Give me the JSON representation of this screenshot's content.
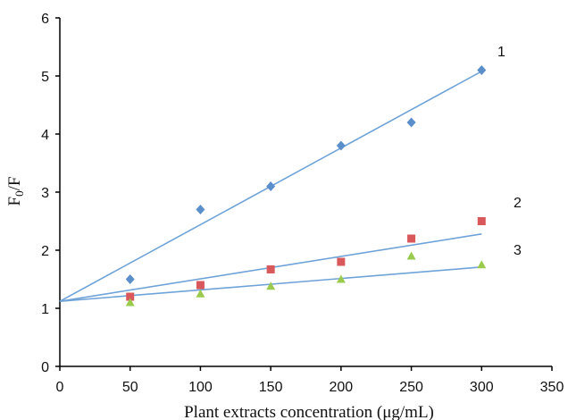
{
  "chart_data": {
    "type": "scatter",
    "xlabel": "Plant extracts concentration (μg/mL)",
    "ylabel": {
      "main": "F",
      "sub": "0",
      "tail": "/F"
    },
    "xlim": [
      0,
      350
    ],
    "ylim": [
      0,
      6
    ],
    "xticks": [
      0,
      50,
      100,
      150,
      200,
      250,
      300,
      350
    ],
    "yticks": [
      0,
      1,
      2,
      3,
      4,
      5,
      6
    ],
    "grid": false,
    "legend": "none",
    "line_color": "#6fa3d8",
    "series": [
      {
        "name": "1",
        "marker": "diamond",
        "color": "#5b8fcb",
        "x": [
          50,
          100,
          150,
          200,
          250,
          300
        ],
        "y": [
          1.5,
          2.7,
          3.1,
          3.8,
          4.2,
          5.1
        ],
        "fit": {
          "x": [
            0,
            300
          ],
          "y": [
            1.12,
            5.08
          ]
        }
      },
      {
        "name": "2",
        "marker": "square",
        "color": "#d9585c",
        "x": [
          50,
          100,
          150,
          200,
          250,
          300
        ],
        "y": [
          1.2,
          1.4,
          1.67,
          1.8,
          2.2,
          2.5
        ],
        "fit": {
          "x": [
            0,
            300
          ],
          "y": [
            1.12,
            2.28
          ]
        }
      },
      {
        "name": "3",
        "marker": "triangle",
        "color": "#9acb4f",
        "x": [
          50,
          100,
          150,
          200,
          250,
          300
        ],
        "y": [
          1.1,
          1.25,
          1.38,
          1.5,
          1.9,
          1.75
        ],
        "fit": {
          "x": [
            0,
            300
          ],
          "y": [
            1.12,
            1.71
          ]
        }
      }
    ]
  }
}
